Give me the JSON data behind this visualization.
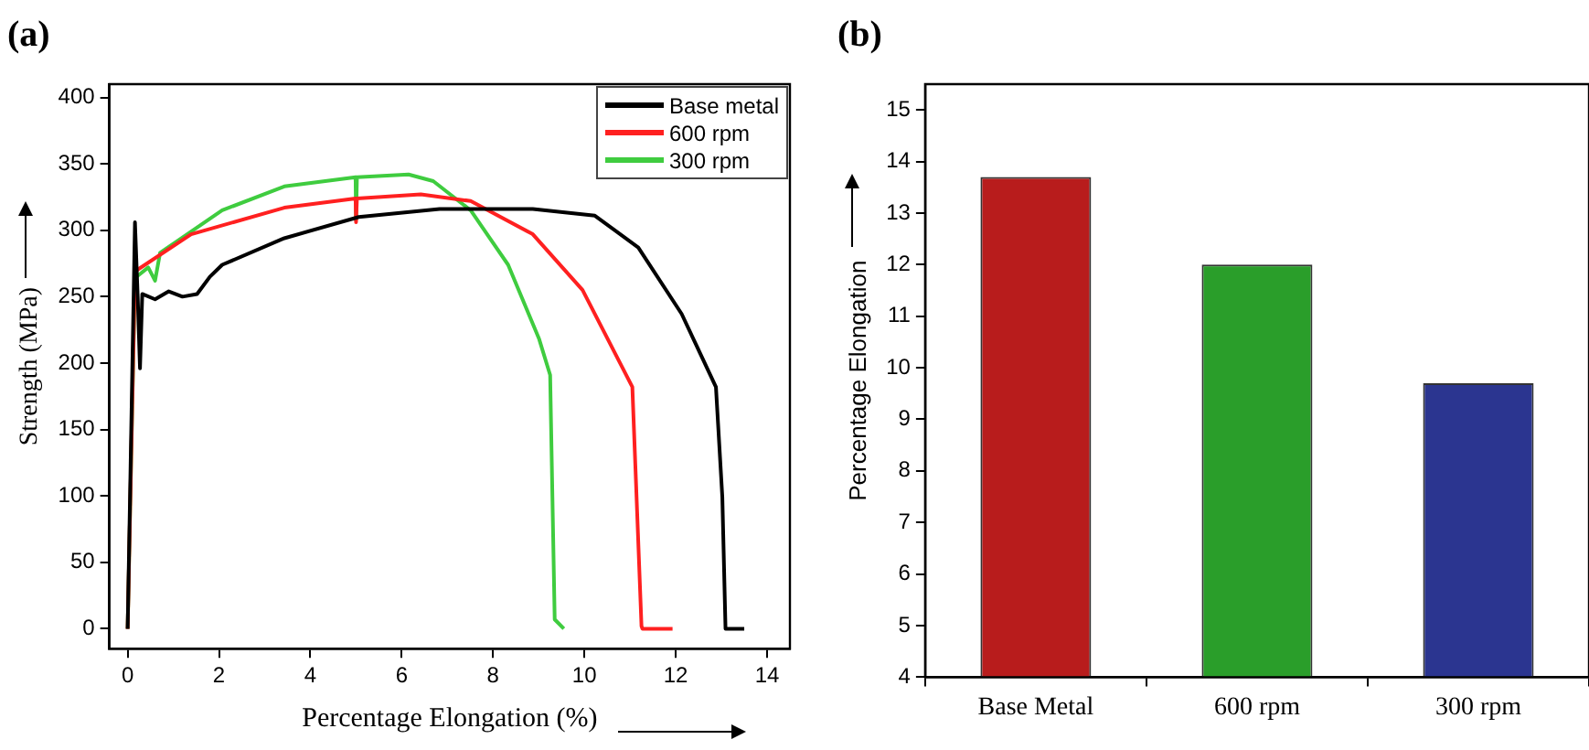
{
  "chart_data": [
    {
      "type": "line",
      "title": "(a)",
      "xlabel": "Percentage Elongation (%)",
      "ylabel": "Strength (MPa)",
      "xlim": [
        -0.4,
        14.5
      ],
      "ylim": [
        -15,
        410
      ],
      "xticks": [
        0,
        2,
        4,
        6,
        8,
        10,
        12,
        14
      ],
      "yticks": [
        0,
        50,
        100,
        150,
        200,
        250,
        300,
        350,
        400
      ],
      "legend": "top right",
      "line_style": "solid",
      "marker": "none",
      "series": [
        {
          "name": "Base metal",
          "color": "#000000",
          "x": [
            0,
            0.16,
            0.22,
            0.27,
            0.32,
            0.6,
            0.9,
            1.2,
            1.52,
            1.8,
            2.07,
            3.43,
            5.06,
            6.83,
            8.87,
            10.23,
            11.18,
            12.13,
            12.88,
            13.02,
            13.09,
            13.5
          ],
          "values": [
            0,
            306,
            250,
            196,
            252,
            248,
            254,
            250,
            252,
            265,
            274,
            294,
            310,
            316,
            316,
            311,
            287,
            237,
            182,
            99,
            0,
            0
          ]
        },
        {
          "name": "600 rpm",
          "color": "#ff2020",
          "x": [
            0,
            0.16,
            1.39,
            3.43,
            4.99,
            5.0,
            5.02,
            6.42,
            7.51,
            8.87,
            9.96,
            11.05,
            11.25,
            11.27,
            11.93
          ],
          "values": [
            0,
            269,
            297,
            317,
            324,
            306,
            324,
            327,
            322,
            297,
            255,
            182,
            2,
            0,
            0
          ]
        },
        {
          "name": "300 rpm",
          "color": "#3fcc3f",
          "x": [
            0,
            0.16,
            0.45,
            0.6,
            0.71,
            2.07,
            3.43,
            4.99,
            5.0,
            5.02,
            6.15,
            6.69,
            7.51,
            8.33,
            9.01,
            9.25,
            9.35,
            9.55
          ],
          "values": [
            0,
            264,
            272,
            262,
            283,
            315,
            333,
            340,
            308,
            340,
            342,
            337,
            315,
            274,
            218,
            191,
            7,
            0
          ],
          "line_style": "solid"
        }
      ]
    },
    {
      "type": "bar",
      "title": "(b)",
      "ylabel": "Percentage Elongation",
      "categories": [
        "Base Metal",
        "600 rpm",
        "300 rpm"
      ],
      "values": [
        13.7,
        12.0,
        9.7
      ],
      "colors": [
        "#b81c1c",
        "#2a9e2a",
        "#2b3590"
      ],
      "ylim": [
        4,
        15.5
      ],
      "yticks": [
        4,
        5,
        6,
        7,
        8,
        9,
        10,
        11,
        12,
        13,
        14,
        15
      ]
    }
  ]
}
